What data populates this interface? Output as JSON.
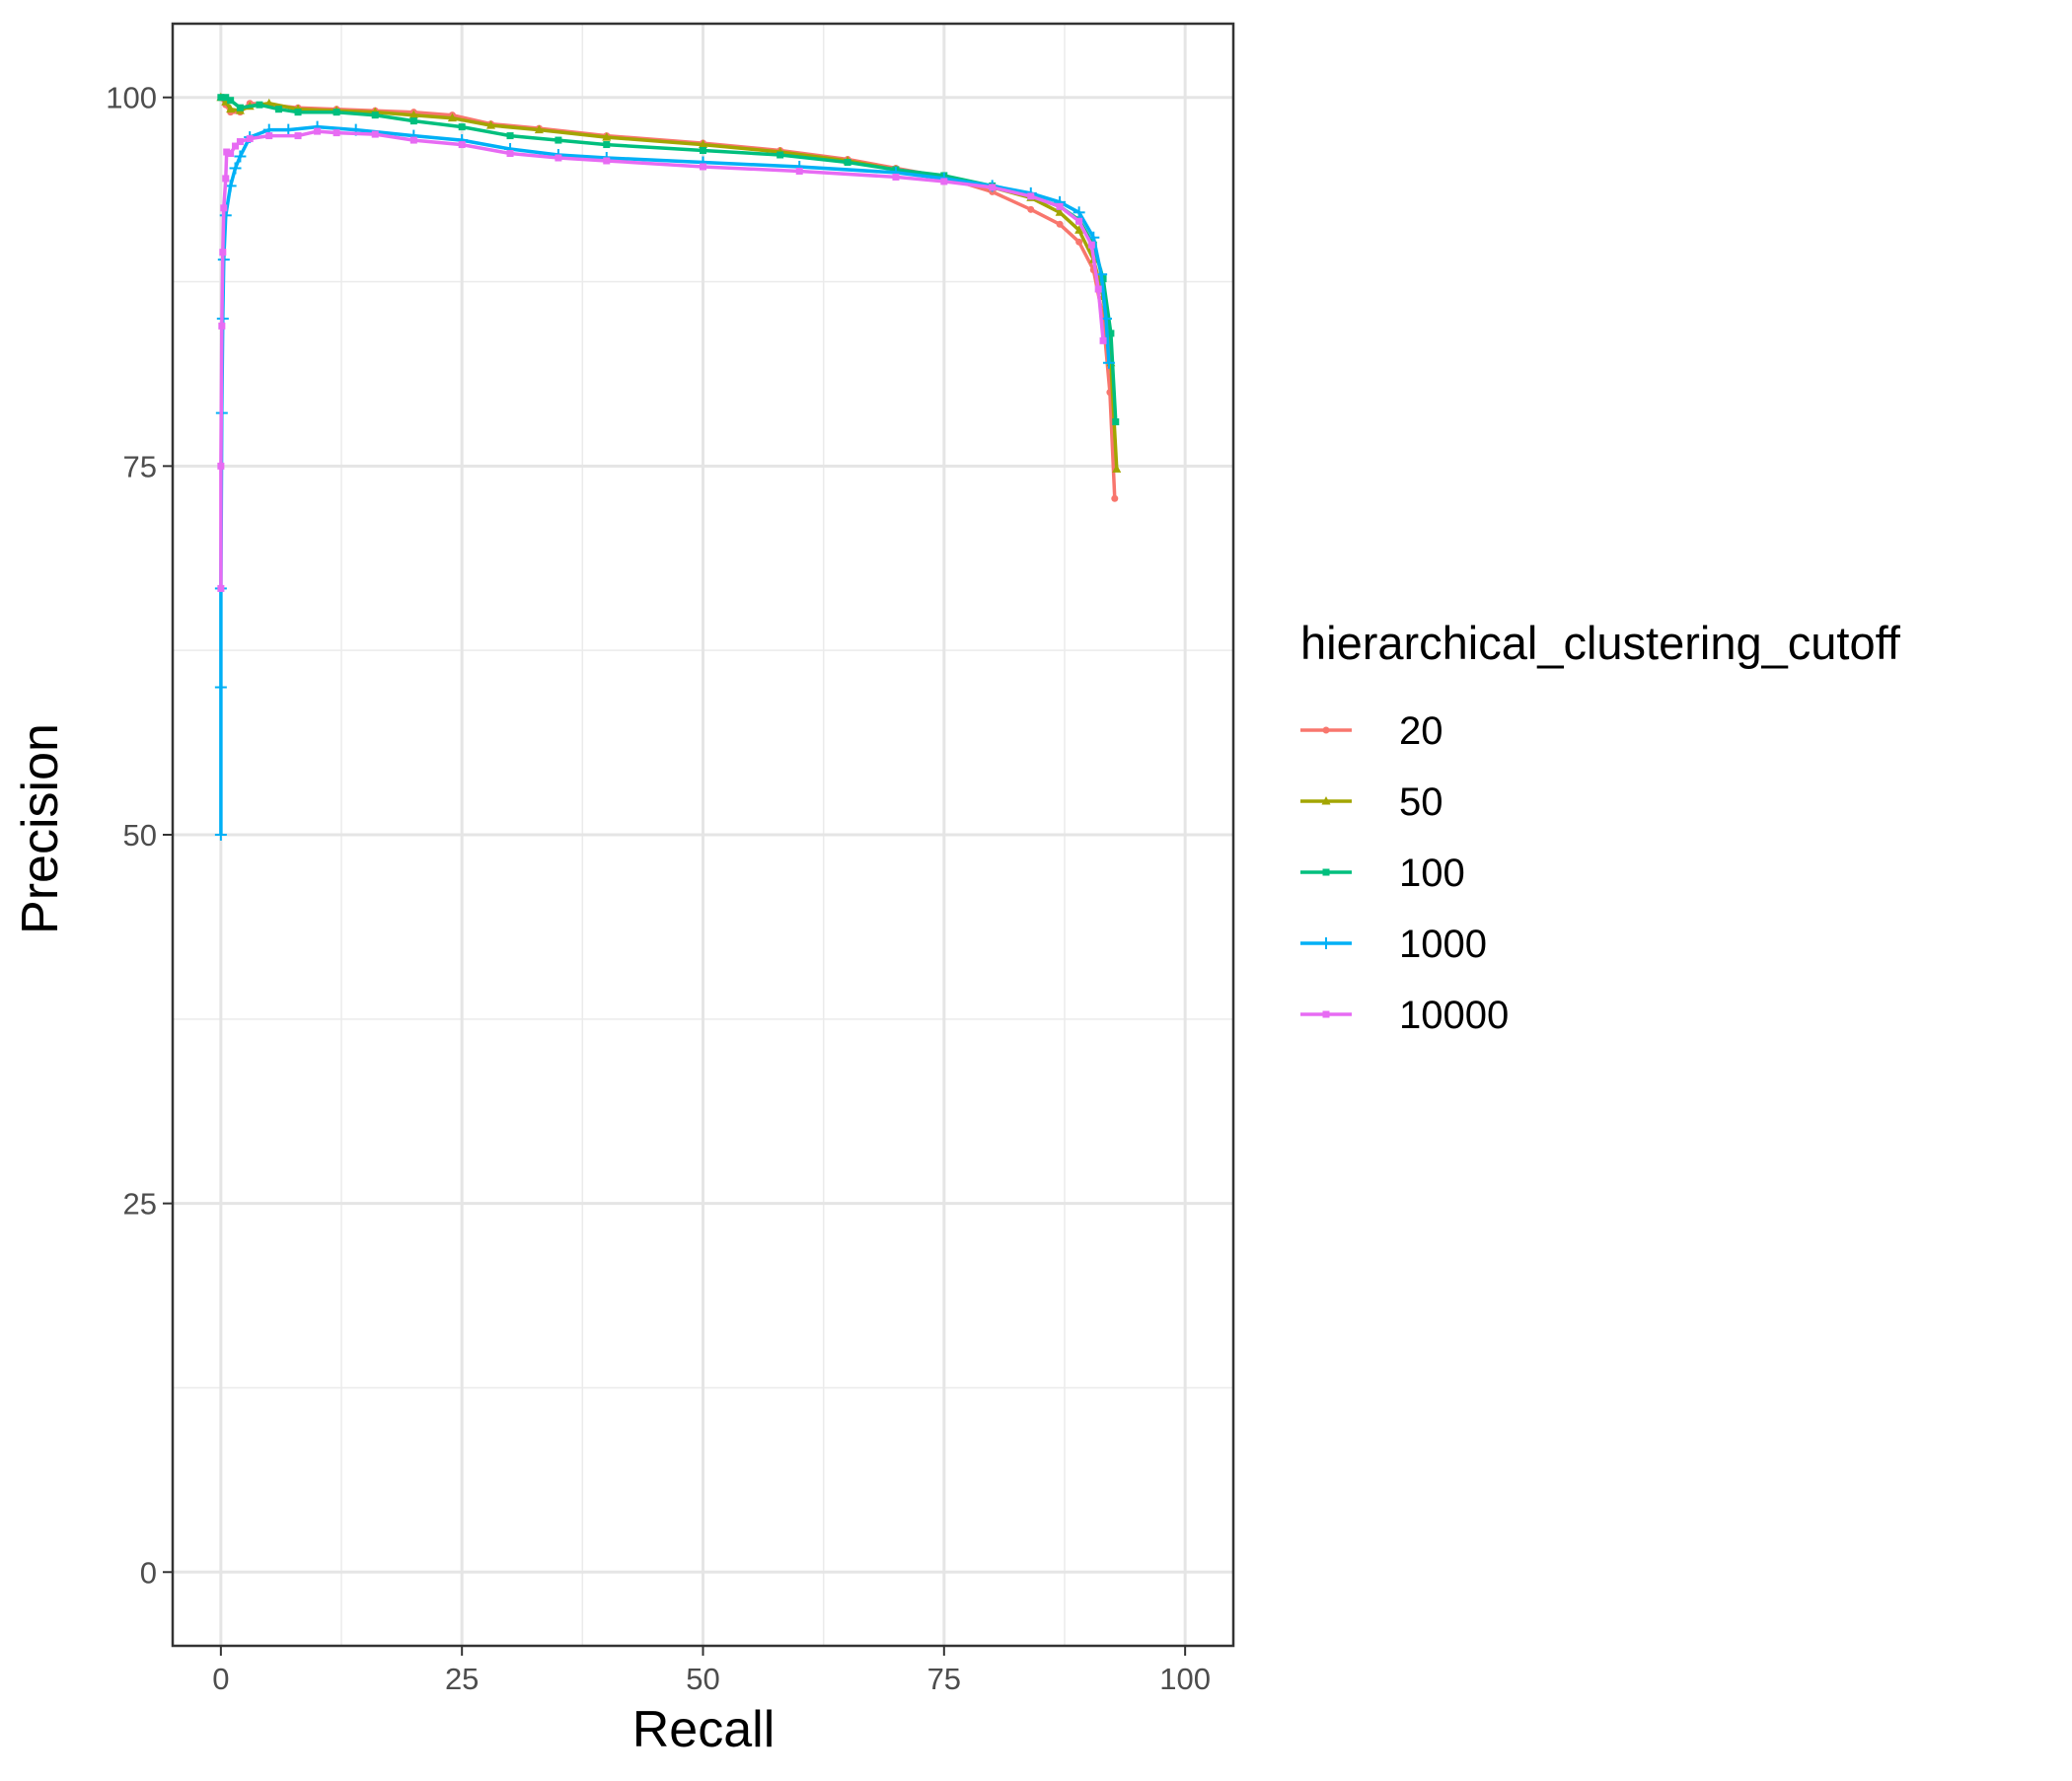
{
  "chart_data": {
    "type": "line",
    "title": "",
    "xlabel": "Recall",
    "ylabel": "Precision",
    "xlim": [
      -5,
      105
    ],
    "ylim": [
      -5,
      105
    ],
    "xticks": [
      0,
      25,
      50,
      75,
      100
    ],
    "yticks": [
      0,
      25,
      50,
      75,
      100
    ],
    "grid": true,
    "legend_title": "hierarchical_clustering_cutoff",
    "legend_position": "right",
    "series": [
      {
        "name": "20",
        "color": "#F8766D",
        "marker": "dot",
        "points": [
          [
            0,
            100
          ],
          [
            0.5,
            99.5
          ],
          [
            1,
            99
          ],
          [
            2,
            99
          ],
          [
            3,
            99.6
          ],
          [
            5,
            99.5
          ],
          [
            8,
            99.3
          ],
          [
            12,
            99.2
          ],
          [
            16,
            99.1
          ],
          [
            20,
            99
          ],
          [
            24,
            98.8
          ],
          [
            28,
            98.2
          ],
          [
            33,
            97.9
          ],
          [
            40,
            97.4
          ],
          [
            50,
            96.9
          ],
          [
            58,
            96.4
          ],
          [
            65,
            95.8
          ],
          [
            70,
            95.2
          ],
          [
            75,
            94.6
          ],
          [
            80,
            93.6
          ],
          [
            84,
            92.4
          ],
          [
            87,
            91.4
          ],
          [
            89,
            90.2
          ],
          [
            90.5,
            88.3
          ],
          [
            91.5,
            85
          ],
          [
            92.2,
            80
          ],
          [
            92.7,
            72.8
          ]
        ]
      },
      {
        "name": "50",
        "color": "#A3A500",
        "marker": "triangle",
        "points": [
          [
            0,
            100
          ],
          [
            0.5,
            99.7
          ],
          [
            1,
            99.2
          ],
          [
            2,
            99.1
          ],
          [
            3,
            99.4
          ],
          [
            5,
            99.6
          ],
          [
            8,
            99.2
          ],
          [
            12,
            99.1
          ],
          [
            16,
            99
          ],
          [
            20,
            98.8
          ],
          [
            24,
            98.6
          ],
          [
            28,
            98.1
          ],
          [
            33,
            97.8
          ],
          [
            40,
            97.3
          ],
          [
            50,
            96.8
          ],
          [
            58,
            96.3
          ],
          [
            65,
            95.7
          ],
          [
            70,
            95.1
          ],
          [
            75,
            94.6
          ],
          [
            80,
            93.9
          ],
          [
            84,
            93.2
          ],
          [
            87,
            92.2
          ],
          [
            89,
            91
          ],
          [
            90.5,
            89
          ],
          [
            91.5,
            86.5
          ],
          [
            92.3,
            82
          ],
          [
            92.9,
            74.8
          ]
        ]
      },
      {
        "name": "100",
        "color": "#00BF7D",
        "marker": "square",
        "points": [
          [
            0,
            100
          ],
          [
            0.5,
            100
          ],
          [
            1,
            99.8
          ],
          [
            2,
            99.3
          ],
          [
            4,
            99.5
          ],
          [
            6,
            99.2
          ],
          [
            8,
            99
          ],
          [
            12,
            99
          ],
          [
            16,
            98.8
          ],
          [
            20,
            98.4
          ],
          [
            25,
            98
          ],
          [
            30,
            97.4
          ],
          [
            35,
            97.1
          ],
          [
            40,
            96.8
          ],
          [
            50,
            96.4
          ],
          [
            58,
            96.1
          ],
          [
            65,
            95.6
          ],
          [
            70,
            95.1
          ],
          [
            75,
            94.7
          ],
          [
            80,
            94
          ],
          [
            84,
            93.3
          ],
          [
            87,
            92.6
          ],
          [
            89,
            91.7
          ],
          [
            90.5,
            90
          ],
          [
            91.5,
            87.7
          ],
          [
            92.3,
            84
          ],
          [
            92.8,
            78
          ]
        ]
      },
      {
        "name": "1000",
        "color": "#00B0F6",
        "marker": "cross",
        "points": [
          [
            0,
            50
          ],
          [
            0,
            60
          ],
          [
            0,
            66.7
          ],
          [
            0.1,
            78.6
          ],
          [
            0.2,
            85
          ],
          [
            0.3,
            89
          ],
          [
            0.5,
            92
          ],
          [
            1,
            94
          ],
          [
            1.5,
            95.2
          ],
          [
            2,
            96
          ],
          [
            3,
            97.3
          ],
          [
            5,
            97.8
          ],
          [
            7,
            97.8
          ],
          [
            10,
            98
          ],
          [
            14,
            97.8
          ],
          [
            20,
            97.4
          ],
          [
            25,
            97.1
          ],
          [
            30,
            96.5
          ],
          [
            35,
            96.1
          ],
          [
            40,
            95.9
          ],
          [
            50,
            95.6
          ],
          [
            60,
            95.3
          ],
          [
            70,
            94.9
          ],
          [
            75,
            94.5
          ],
          [
            80,
            94
          ],
          [
            84,
            93.5
          ],
          [
            87,
            92.9
          ],
          [
            89,
            92.2
          ],
          [
            90.5,
            90.5
          ],
          [
            91.3,
            88
          ],
          [
            91.8,
            85
          ],
          [
            92.1,
            82
          ]
        ]
      },
      {
        "name": "10000",
        "color": "#E76BF3",
        "marker": "square",
        "points": [
          [
            0,
            66.7
          ],
          [
            0,
            75
          ],
          [
            0.1,
            84.5
          ],
          [
            0.2,
            89.5
          ],
          [
            0.3,
            92.5
          ],
          [
            0.5,
            94.5
          ],
          [
            0.6,
            96.3
          ],
          [
            1,
            96.2
          ],
          [
            1.5,
            96.7
          ],
          [
            2,
            97
          ],
          [
            3,
            97.2
          ],
          [
            5,
            97.4
          ],
          [
            8,
            97.4
          ],
          [
            10,
            97.7
          ],
          [
            12,
            97.6
          ],
          [
            16,
            97.5
          ],
          [
            20,
            97.1
          ],
          [
            25,
            96.8
          ],
          [
            30,
            96.2
          ],
          [
            35,
            95.9
          ],
          [
            40,
            95.7
          ],
          [
            50,
            95.3
          ],
          [
            60,
            95.0
          ],
          [
            70,
            94.6
          ],
          [
            75,
            94.3
          ],
          [
            80,
            93.9
          ],
          [
            84,
            93.3
          ],
          [
            87,
            92.6
          ],
          [
            89,
            91.6
          ],
          [
            90.3,
            90
          ],
          [
            91,
            87
          ],
          [
            91.5,
            83.5
          ]
        ]
      }
    ]
  }
}
